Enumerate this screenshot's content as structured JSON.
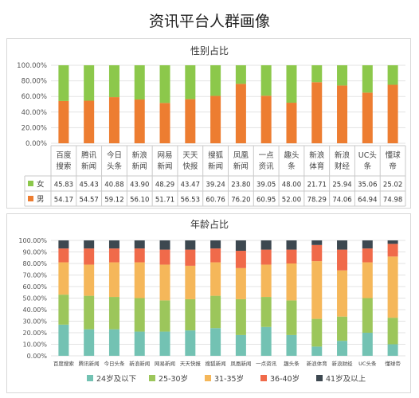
{
  "title": "资讯平台人群画像",
  "colors": {
    "female": "#8cc84b",
    "male": "#ed7d31",
    "age": [
      "#73c2b3",
      "#9cc65b",
      "#f5b75a",
      "#f06a4a",
      "#3d4850"
    ],
    "grid": "#e3e3e3",
    "axis_text": "#555555"
  },
  "chart_data": [
    {
      "type": "bar",
      "stacked": true,
      "title": "性别占比",
      "categories": [
        "百度\n搜索",
        "腾讯\n新闻",
        "今日\n头条",
        "新浪\n新闻",
        "网易\n新闻",
        "天天\n快报",
        "搜狐\n新闻",
        "凤凰\n新闻",
        "一点\n资讯",
        "趣头\n条",
        "新浪\n体育",
        "新浪\n财经",
        "UC头\n条",
        "懂球\n帝"
      ],
      "yticks": [
        "0.00%",
        "20.00%",
        "40.00%",
        "60.00%",
        "80.00%",
        "100.00%"
      ],
      "ylim": [
        0,
        100
      ],
      "grid": true,
      "series": [
        {
          "name": "女",
          "color": "#8cc84b",
          "values": [
            "45.83",
            "45.43",
            "40.88",
            "43.90",
            "48.29",
            "43.47",
            "39.24",
            "23.80",
            "39.05",
            "48.00",
            "21.71",
            "25.94",
            "35.06",
            "25.02"
          ]
        },
        {
          "name": "男",
          "color": "#ed7d31",
          "values": [
            "54.17",
            "54.57",
            "59.12",
            "56.10",
            "51.71",
            "56.53",
            "60.76",
            "76.20",
            "60.95",
            "52.00",
            "78.29",
            "74.06",
            "64.94",
            "74.98"
          ]
        }
      ]
    },
    {
      "type": "bar",
      "stacked": true,
      "title": "年龄占比",
      "categories": [
        "百度搜索",
        "腾讯新闻",
        "今日头条",
        "新浪新闻",
        "网易新闻",
        "天天快报",
        "搜狐新闻",
        "凤凰新闻",
        "一点资讯",
        "趣头条",
        "新浪体育",
        "新浪财经",
        "UC头条",
        "懂球帝"
      ],
      "yticks": [
        "0.00%",
        "10.00%",
        "20.00%",
        "30.00%",
        "40.00%",
        "50.00%",
        "60.00%",
        "70.00%",
        "80.00%",
        "90.00%",
        "100.00%"
      ],
      "ylim": [
        0,
        100
      ],
      "grid": true,
      "legend": "bottom",
      "series": [
        {
          "name": "24岁及以下",
          "color": "#73c2b3",
          "values": [
            27,
            23,
            23,
            21,
            21,
            22,
            24,
            18,
            25,
            18,
            8,
            13,
            20,
            10
          ]
        },
        {
          "name": "25-30岁",
          "color": "#9cc65b",
          "values": [
            26,
            29,
            28,
            29,
            27,
            27,
            28,
            31,
            26,
            30,
            24,
            21,
            30,
            23
          ]
        },
        {
          "name": "31-35岁",
          "color": "#f5b75a",
          "values": [
            28,
            27,
            30,
            31,
            31,
            29,
            29,
            27,
            28,
            32,
            50,
            40,
            31,
            53
          ]
        },
        {
          "name": "36-40岁",
          "color": "#f06a4a",
          "values": [
            12,
            14,
            12,
            12,
            13,
            14,
            12,
            15,
            13,
            12,
            14,
            18,
            12,
            11
          ]
        },
        {
          "name": "41岁及以上",
          "color": "#3d4850",
          "values": [
            7,
            7,
            7,
            7,
            8,
            8,
            7,
            9,
            8,
            8,
            4,
            8,
            7,
            3
          ]
        }
      ]
    }
  ]
}
